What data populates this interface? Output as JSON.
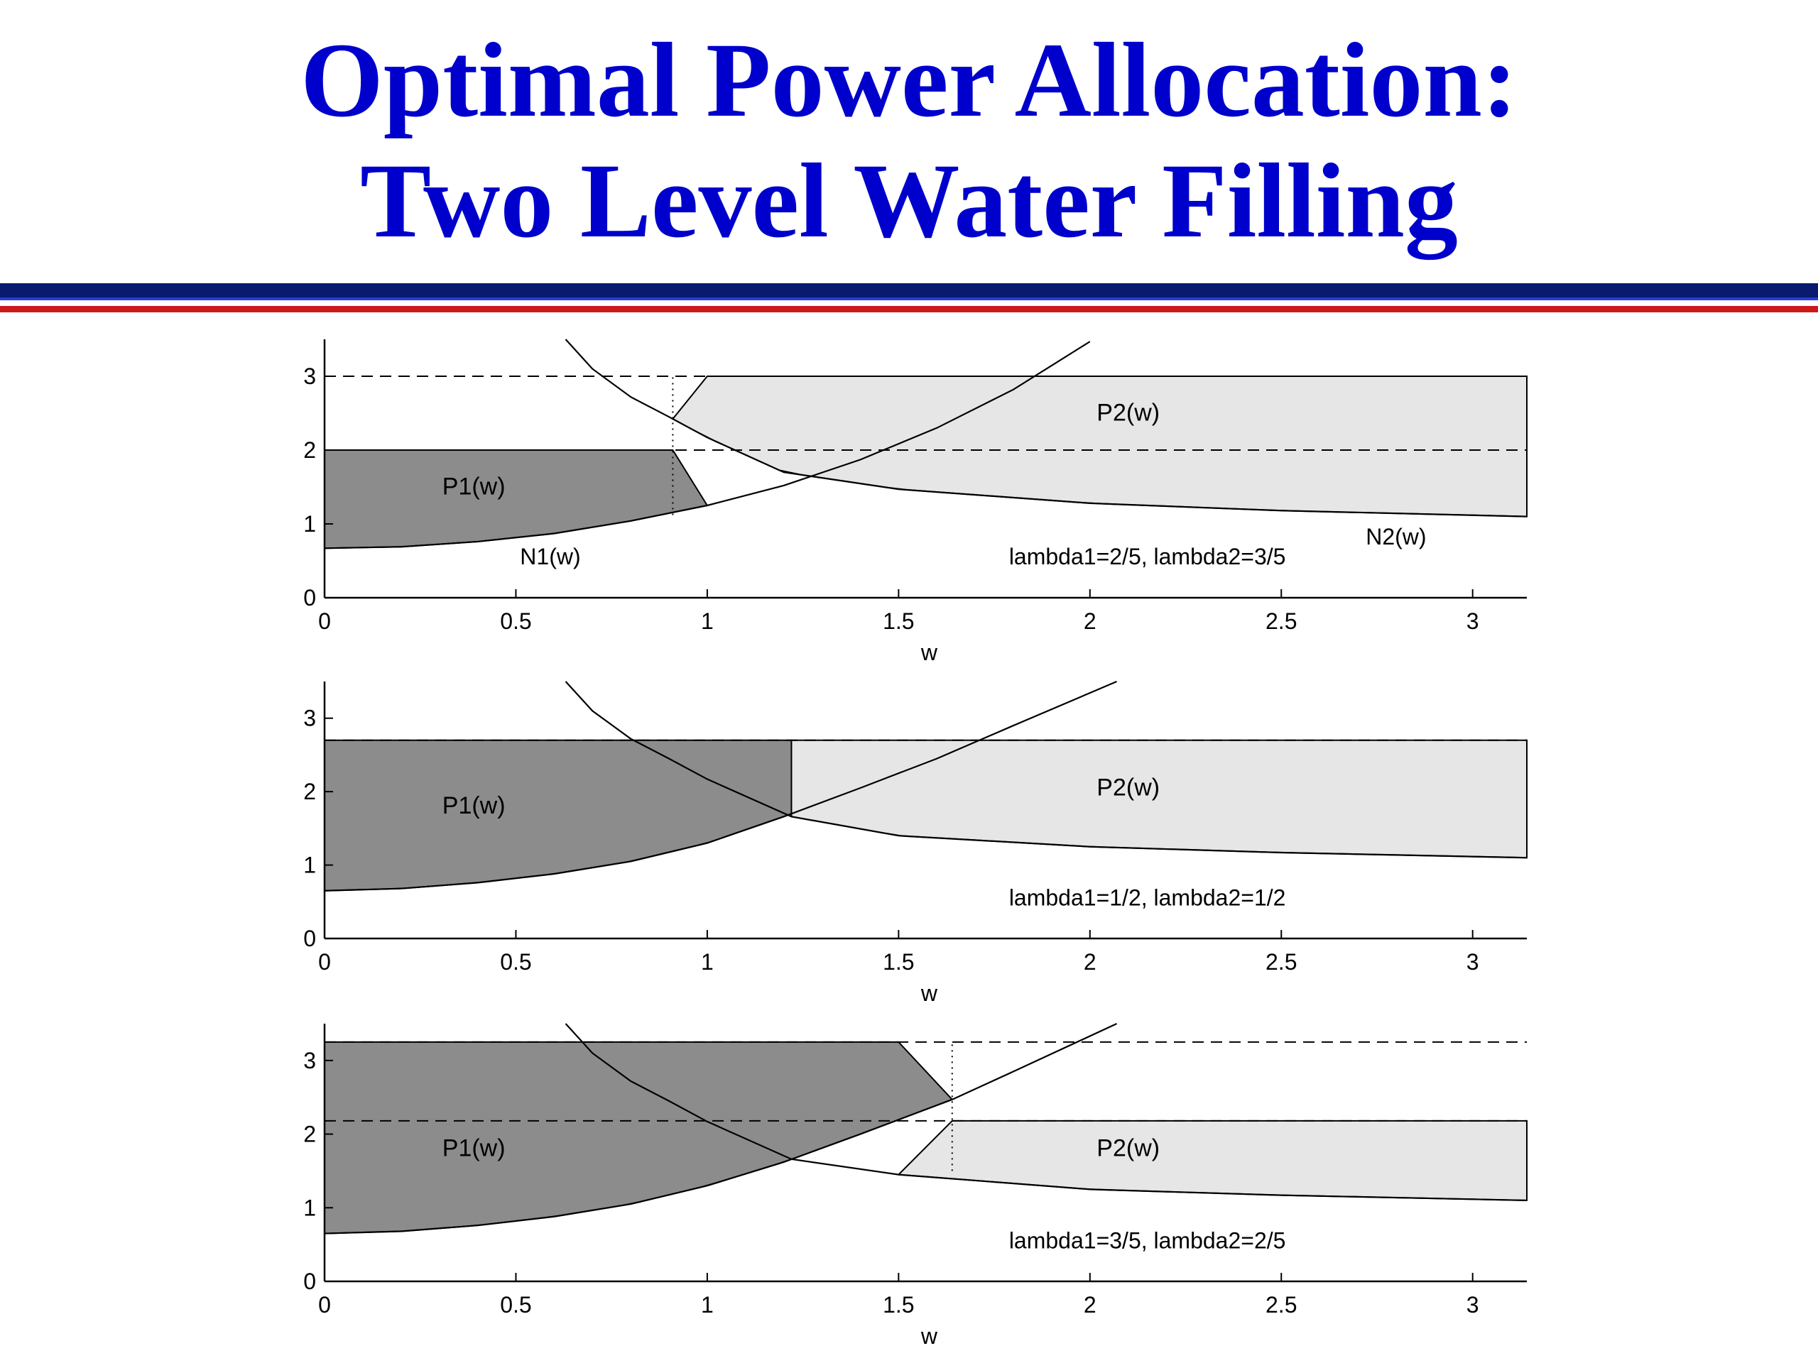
{
  "slide": {
    "title_line1": "Optimal Power Allocation:",
    "title_line2": "Two Level Water Filling"
  },
  "colors": {
    "title": "#0000cc",
    "rule_navy": "#0a1a6e",
    "rule_red": "#cc1a1a",
    "p1_fill": "#8c8c8c",
    "p2_fill": "#e6e6e6"
  },
  "chart_data": [
    {
      "type": "area",
      "xlabel": "w",
      "xlim": [
        0,
        3.1416
      ],
      "ylim": [
        0,
        3.5
      ],
      "x_ticks": [
        "0",
        "0.5",
        "1",
        "1.5",
        "2",
        "2.5",
        "3"
      ],
      "y_ticks": [
        "0",
        "1",
        "2",
        "3"
      ],
      "caption": "lambda1=2/5, lambda2=3/5",
      "region_labels": [
        "P1(w)",
        "P2(w)"
      ],
      "curve_labels": [
        "N1(w)",
        "N2(w)"
      ],
      "water_levels": [
        2.0,
        3.0
      ],
      "crossover_w": 0.91,
      "p1_region": {
        "x_start": 0,
        "level": 2.0,
        "level_end_x": 0.91,
        "end_x": 1.0
      },
      "p2_region": {
        "start_x": 0.91,
        "level_start_x": 1.0,
        "level": 3.0,
        "x_end": 3.1416
      },
      "n1_curve": {
        "x": [
          0,
          0.2,
          0.4,
          0.6,
          0.8,
          1.0,
          1.2,
          1.4,
          1.6,
          1.8,
          2.0
        ],
        "y": [
          0.67,
          0.69,
          0.76,
          0.87,
          1.04,
          1.25,
          1.52,
          1.87,
          2.3,
          2.82,
          3.47
        ]
      },
      "n2_curve": {
        "x": [
          0.63,
          0.7,
          0.8,
          0.9,
          1.0,
          1.2,
          1.5,
          2.0,
          2.5,
          3.1416
        ],
        "y": [
          3.5,
          3.1,
          2.72,
          2.45,
          2.17,
          1.7,
          1.47,
          1.28,
          1.18,
          1.1
        ]
      },
      "dotted_verticals": [
        {
          "x": 0.91,
          "y": [
            1.12,
            3.0
          ]
        }
      ]
    },
    {
      "type": "area",
      "xlabel": "w",
      "xlim": [
        0,
        3.1416
      ],
      "ylim": [
        0,
        3.5
      ],
      "x_ticks": [
        "0",
        "0.5",
        "1",
        "1.5",
        "2",
        "2.5",
        "3"
      ],
      "y_ticks": [
        "0",
        "1",
        "2",
        "3"
      ],
      "caption": "lambda1=1/2, lambda2=1/2",
      "region_labels": [
        "P1(w)",
        "P2(w)"
      ],
      "curve_labels": [],
      "water_levels": [
        2.7
      ],
      "crossover_w": 1.22,
      "p1_region": {
        "x_start": 0,
        "level": 2.7,
        "level_end_x": 1.22,
        "end_x": 1.22
      },
      "p2_region": {
        "start_x": 1.22,
        "level_start_x": 1.22,
        "level": 2.7,
        "x_end": 3.1416
      },
      "n1_curve": {
        "x": [
          0,
          0.2,
          0.4,
          0.6,
          0.8,
          1.0,
          1.2,
          1.4,
          1.6,
          1.8,
          2.07
        ],
        "y": [
          0.65,
          0.68,
          0.76,
          0.88,
          1.05,
          1.3,
          1.66,
          2.05,
          2.45,
          2.9,
          3.5
        ]
      },
      "n2_curve": {
        "x": [
          0.63,
          0.7,
          0.8,
          0.9,
          1.0,
          1.22,
          1.5,
          2.0,
          2.5,
          3.1416
        ],
        "y": [
          3.5,
          3.1,
          2.72,
          2.45,
          2.17,
          1.66,
          1.4,
          1.25,
          1.17,
          1.1
        ]
      },
      "dotted_verticals": []
    },
    {
      "type": "area",
      "xlabel": "w",
      "xlim": [
        0,
        3.1416
      ],
      "ylim": [
        0,
        3.5
      ],
      "x_ticks": [
        "0",
        "0.5",
        "1",
        "1.5",
        "2",
        "2.5",
        "3"
      ],
      "y_ticks": [
        "0",
        "1",
        "2",
        "3"
      ],
      "caption": "lambda1=3/5, lambda2=2/5",
      "region_labels": [
        "P1(w)",
        "P2(w)"
      ],
      "curve_labels": [],
      "water_levels": [
        2.18,
        3.25
      ],
      "crossover_w": 1.64,
      "p1_region": {
        "x_start": 0,
        "level": 3.25,
        "level_end_x": 1.5,
        "end_x": 1.64
      },
      "p2_region": {
        "start_x": 1.5,
        "level_start_x": 1.64,
        "level": 2.18,
        "x_end": 3.1416
      },
      "n1_curve": {
        "x": [
          0,
          0.2,
          0.4,
          0.6,
          0.8,
          1.0,
          1.2,
          1.4,
          1.64,
          1.8,
          2.07
        ],
        "y": [
          0.65,
          0.68,
          0.76,
          0.88,
          1.05,
          1.3,
          1.62,
          2.0,
          2.47,
          2.85,
          3.5
        ]
      },
      "n2_curve": {
        "x": [
          0.63,
          0.7,
          0.8,
          0.9,
          1.0,
          1.22,
          1.5,
          2.0,
          2.5,
          3.1416
        ],
        "y": [
          3.5,
          3.1,
          2.72,
          2.45,
          2.17,
          1.66,
          1.45,
          1.25,
          1.17,
          1.1
        ]
      },
      "dotted_verticals": [
        {
          "x": 1.64,
          "y": [
            1.5,
            3.25
          ]
        }
      ]
    }
  ]
}
